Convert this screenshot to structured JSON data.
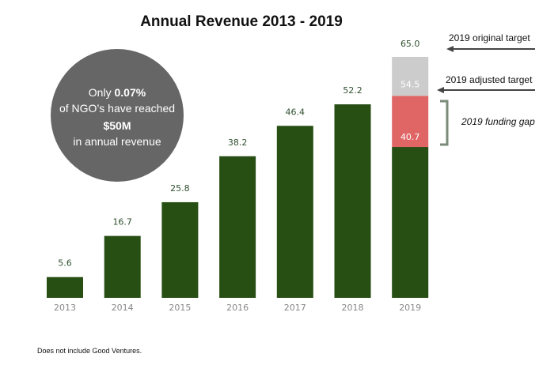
{
  "chart_data": {
    "type": "bar",
    "title": "Annual Revenue 2013 - 2019",
    "xlabel": "",
    "ylabel": "",
    "categories": [
      "2013",
      "2014",
      "2015",
      "2016",
      "2017",
      "2018",
      "2019"
    ],
    "values": [
      5.6,
      16.7,
      25.8,
      38.2,
      46.4,
      52.2,
      40.7
    ],
    "value_labels": [
      "5.6",
      "16.7",
      "25.8",
      "38.2",
      "46.4",
      "52.2",
      "40.7"
    ],
    "stack_2019": [
      {
        "from": 40.7,
        "to": 54.5,
        "color": "#e06666"
      },
      {
        "from": 54.5,
        "to": 65.0,
        "color": "#cccccc"
      }
    ],
    "stack_labels": [
      "54.5",
      "65.0"
    ],
    "ylim": [
      0,
      65
    ],
    "grid": false,
    "colors": {
      "bar": "#274e13",
      "gap": "#e06666",
      "target": "#cccccc",
      "circle": "#666666"
    },
    "annotations": {
      "original_target": "2019 original target",
      "adjusted_target": "2019 adjusted target",
      "funding_gap": "2019 funding gap"
    },
    "callout": {
      "line1_prefix": "Only ",
      "line1_bold": "0.07%",
      "line2": "of NGO’s have reached",
      "line3_bold": "$50M",
      "line4": "in annual revenue"
    }
  },
  "footnote": "Does not include Good Ventures."
}
